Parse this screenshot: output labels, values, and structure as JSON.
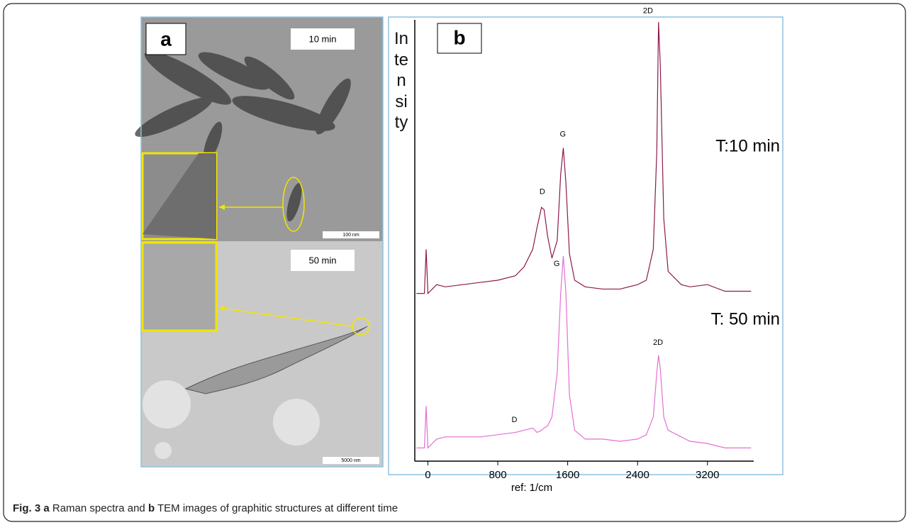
{
  "panel_a": {
    "label": "a",
    "images": [
      {
        "time": "10 min",
        "scale_bar": "100 nm"
      },
      {
        "time": "50 min",
        "scale_bar": "5000 nm"
      }
    ]
  },
  "panel_b": {
    "label": "b"
  },
  "chart_data": {
    "type": "line",
    "x_label": "ref: 1/cm",
    "y_label": "Intensity",
    "xlim": [
      -150,
      4030
    ],
    "ylim": [
      0,
      100
    ],
    "xticks": [
      0,
      800,
      1600,
      2400,
      3200
    ],
    "x": [
      -130,
      -40,
      -20,
      0,
      50,
      100,
      200,
      400,
      600,
      800,
      1000,
      1100,
      1200,
      1250,
      1300,
      1330,
      1370,
      1420,
      1480,
      1520,
      1550,
      1580,
      1620,
      1680,
      1800,
      2000,
      2200,
      2400,
      2500,
      2580,
      2620,
      2640,
      2660,
      2700,
      2750,
      2900,
      3000,
      3200,
      3400,
      3700
    ],
    "series": [
      {
        "name": "T:10 min",
        "color": "#8b1a4a",
        "values": [
          38,
          38,
          48,
          38,
          39,
          40,
          39.5,
          40,
          40.5,
          41,
          42,
          44,
          48,
          53,
          57.5,
          57,
          51,
          46,
          50,
          65,
          71,
          63,
          47,
          41,
          39.5,
          39,
          39,
          40,
          41,
          48,
          70,
          99.5,
          90,
          55,
          43,
          40,
          39.5,
          40,
          38.5,
          38.5
        ]
      },
      {
        "name": "T: 50 min",
        "color": "#e46fd2",
        "values": [
          3,
          3,
          12.5,
          3,
          4,
          5,
          5.5,
          5.5,
          5.5,
          6,
          6.5,
          7,
          7.5,
          6.5,
          7,
          7.5,
          8,
          10,
          20,
          38,
          46.5,
          38,
          15,
          7,
          5,
          5,
          4.5,
          5,
          6,
          10,
          20,
          24,
          21,
          10,
          7,
          5.5,
          4.5,
          4,
          3,
          3
        ]
      }
    ],
    "annotations": [
      {
        "text": "D",
        "x": 1310,
        "y": 61
      },
      {
        "text": "G",
        "x": 1545,
        "y": 74
      },
      {
        "text": "2D",
        "x": 2520,
        "y": 102
      },
      {
        "text": "D",
        "x": 990,
        "y": 9.3
      },
      {
        "text": "G",
        "x": 1475,
        "y": 44.7
      },
      {
        "text": "2D",
        "x": 2634,
        "y": 26.8
      }
    ]
  },
  "caption": {
    "fig": "Fig. 3",
    "a": "a",
    "text1": "Raman spectra and",
    "b": "b",
    "text2": "TEM images of graphitic structures at different time"
  }
}
